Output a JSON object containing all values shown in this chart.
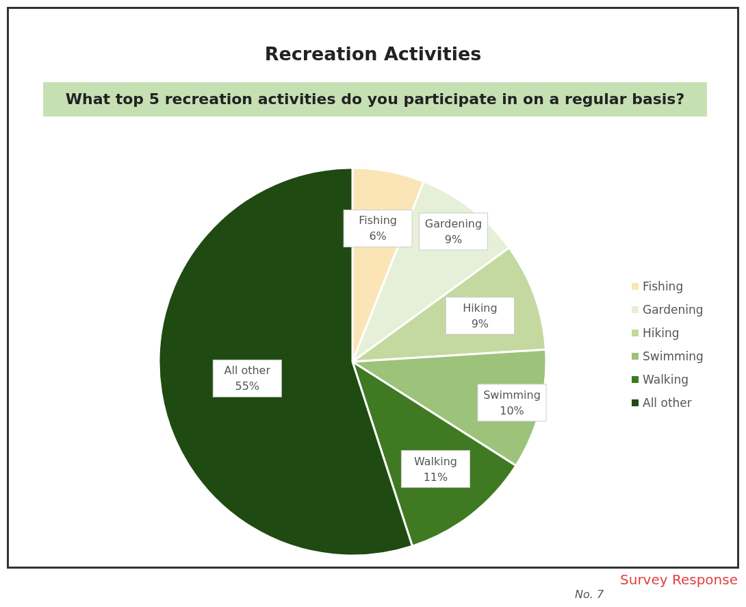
{
  "chart_data": {
    "type": "pie",
    "title": "Recreation Activities",
    "subtitle": "What top 5 recreation activities do you participate in on a regular basis?",
    "categories": [
      "Fishing",
      "Gardening",
      "Hiking",
      "Swimming",
      "Walking",
      "All other"
    ],
    "values": [
      6,
      9,
      9,
      10,
      11,
      55
    ],
    "value_labels": [
      "6%",
      "9%",
      "9%",
      "10%",
      "11%",
      "55%"
    ],
    "colors": [
      "#fbe5b6",
      "#e6f0d8",
      "#c3d9a0",
      "#9dc27a",
      "#3f7a22",
      "#1f4a12"
    ],
    "legend": "right",
    "annotations": [
      "Survey Response",
      "No. 7"
    ]
  }
}
